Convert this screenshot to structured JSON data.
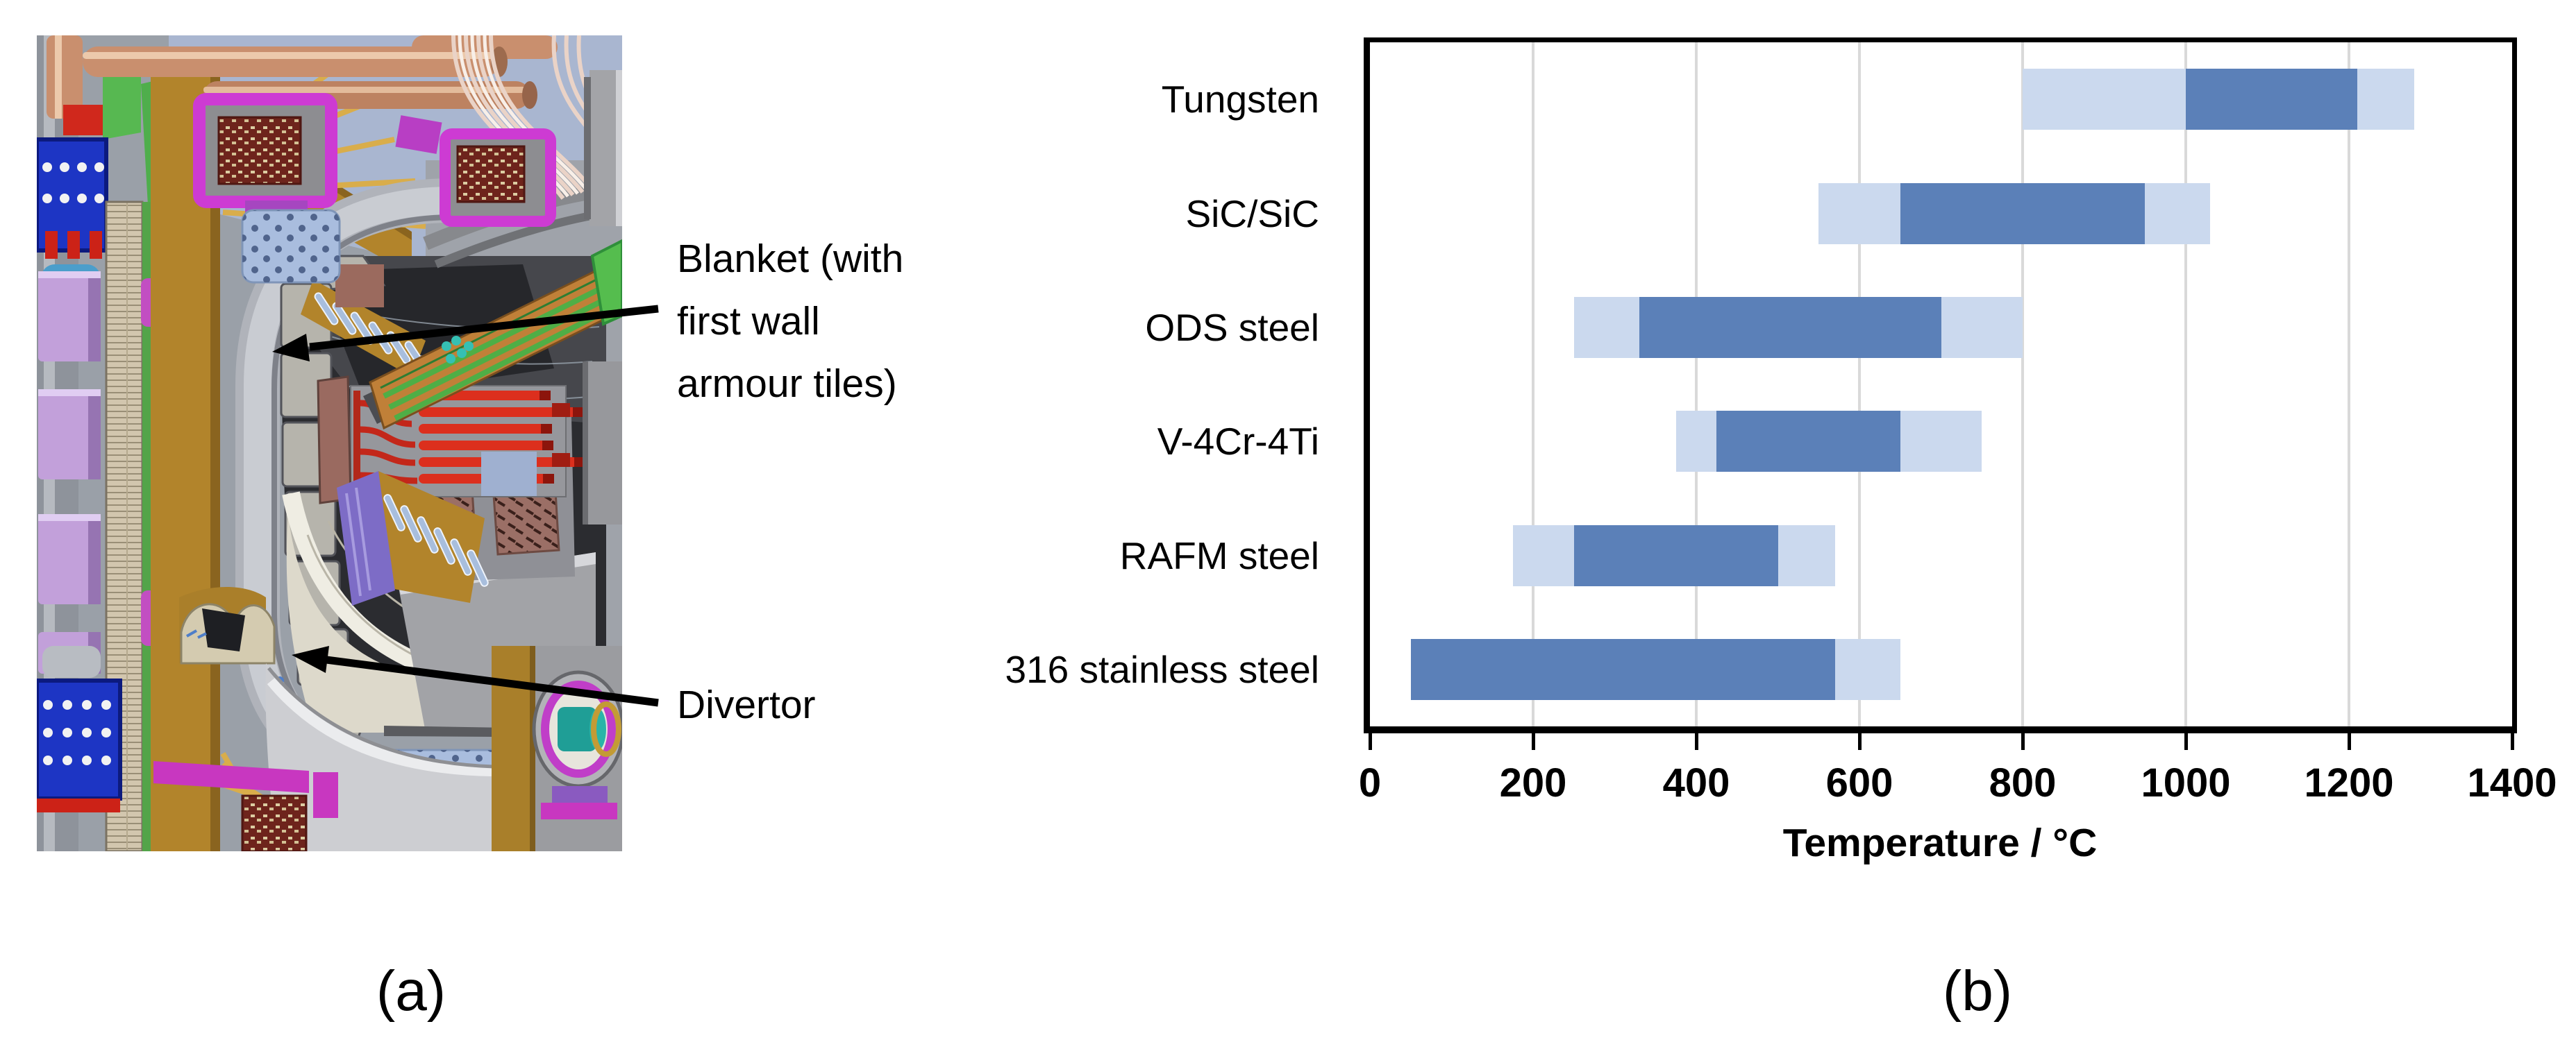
{
  "figure": {
    "panel_a_label": "(a)",
    "panel_b_label": "(b)"
  },
  "panel_a": {
    "illustration": "tokamak-reactor-cutaway",
    "annotations": {
      "blanket_lines": [
        "Blanket (with",
        "first wall",
        "armour tiles)"
      ],
      "divertor": "Divertor"
    }
  },
  "chart_data": {
    "type": "bar",
    "subtype": "horizontal-range-bars",
    "title": "",
    "xlabel": "Temperature / °C",
    "xlim": [
      0,
      1400
    ],
    "xticks": [
      0,
      200,
      400,
      600,
      800,
      1000,
      1200,
      1400
    ],
    "grid": "vertical gridlines at each 200 °C tick",
    "legend_position": "none",
    "units": "°C",
    "categories": [
      "Tungsten",
      "SiC/SiC",
      "ODS steel",
      "V-4Cr-4Ti",
      "RAFM steel",
      "316 stainless steel"
    ],
    "bars": [
      {
        "material": "Tungsten",
        "band_min": 800,
        "core_min": 1000,
        "core_max": 1210,
        "band_max": 1280
      },
      {
        "material": "SiC/SiC",
        "band_min": 550,
        "core_min": 650,
        "core_max": 950,
        "band_max": 1030
      },
      {
        "material": "ODS steel",
        "band_min": 250,
        "core_min": 330,
        "core_max": 700,
        "band_max": 800
      },
      {
        "material": "V-4Cr-4Ti",
        "band_min": 375,
        "core_min": 425,
        "core_max": 650,
        "band_max": 750
      },
      {
        "material": "RAFM steel",
        "band_min": 175,
        "core_min": 250,
        "core_max": 500,
        "band_max": 570
      },
      {
        "material": "316 stainless steel",
        "band_min": 50,
        "core_min": 50,
        "core_max": 570,
        "band_max": 650
      }
    ],
    "colors": {
      "core_segment": "#5B80B8",
      "band_segment": "#CBD9EE",
      "gridline": "#D9D9D9",
      "axis": "#000000"
    }
  }
}
